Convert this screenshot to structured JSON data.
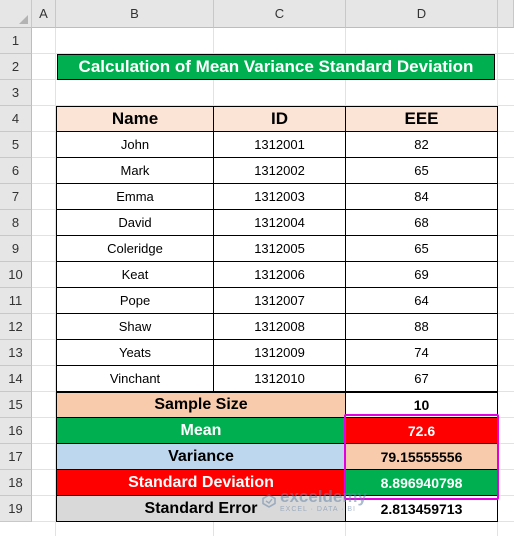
{
  "columns": [
    "A",
    "B",
    "C",
    "D"
  ],
  "rows": [
    "1",
    "2",
    "3",
    "4",
    "5",
    "6",
    "7",
    "8",
    "9",
    "10",
    "11",
    "12",
    "13",
    "14",
    "15",
    "16",
    "17",
    "18",
    "19"
  ],
  "title": "Calculation of Mean Variance Standard Deviation",
  "table": {
    "headers": [
      "Name",
      "ID",
      "EEE"
    ],
    "records": [
      {
        "name": "John",
        "id": "1312001",
        "eee": "82"
      },
      {
        "name": "Mark",
        "id": "1312002",
        "eee": "65"
      },
      {
        "name": "Emma",
        "id": "1312003",
        "eee": "84"
      },
      {
        "name": "David",
        "id": "1312004",
        "eee": "68"
      },
      {
        "name": "Coleridge",
        "id": "1312005",
        "eee": "65"
      },
      {
        "name": "Keat",
        "id": "1312006",
        "eee": "69"
      },
      {
        "name": "Pope",
        "id": "1312007",
        "eee": "64"
      },
      {
        "name": "Shaw",
        "id": "1312008",
        "eee": "88"
      },
      {
        "name": "Yeats",
        "id": "1312009",
        "eee": "74"
      },
      {
        "name": "Vinchant",
        "id": "1312010",
        "eee": "67"
      }
    ]
  },
  "summary": [
    {
      "label": "Sample Size",
      "value": "10",
      "label_bg": "#f8cbad",
      "label_color": "#000000",
      "value_bg": "#ffffff",
      "value_color": "#000000"
    },
    {
      "label": "Mean",
      "value": "72.6",
      "label_bg": "#00b050",
      "label_color": "#ffffff",
      "value_bg": "#ff0000",
      "value_color": "#ffffff"
    },
    {
      "label": "Variance",
      "value": "79.15555556",
      "label_bg": "#bdd7ee",
      "label_color": "#000000",
      "value_bg": "#f8cbad",
      "value_color": "#000000"
    },
    {
      "label": "Standard Deviation",
      "value": "8.896940798",
      "label_bg": "#ff0000",
      "label_color": "#ffffff",
      "value_bg": "#00b050",
      "value_color": "#ffffff"
    },
    {
      "label": "Standard Error",
      "value": "2.813459713",
      "label_bg": "#d9d9d9",
      "label_color": "#000000",
      "value_bg": "#ffffff",
      "value_color": "#000000"
    }
  ],
  "highlight_color": "#e100e1",
  "watermark": {
    "brand": "exceldemy",
    "tagline": "EXCEL · DATA · BI"
  }
}
